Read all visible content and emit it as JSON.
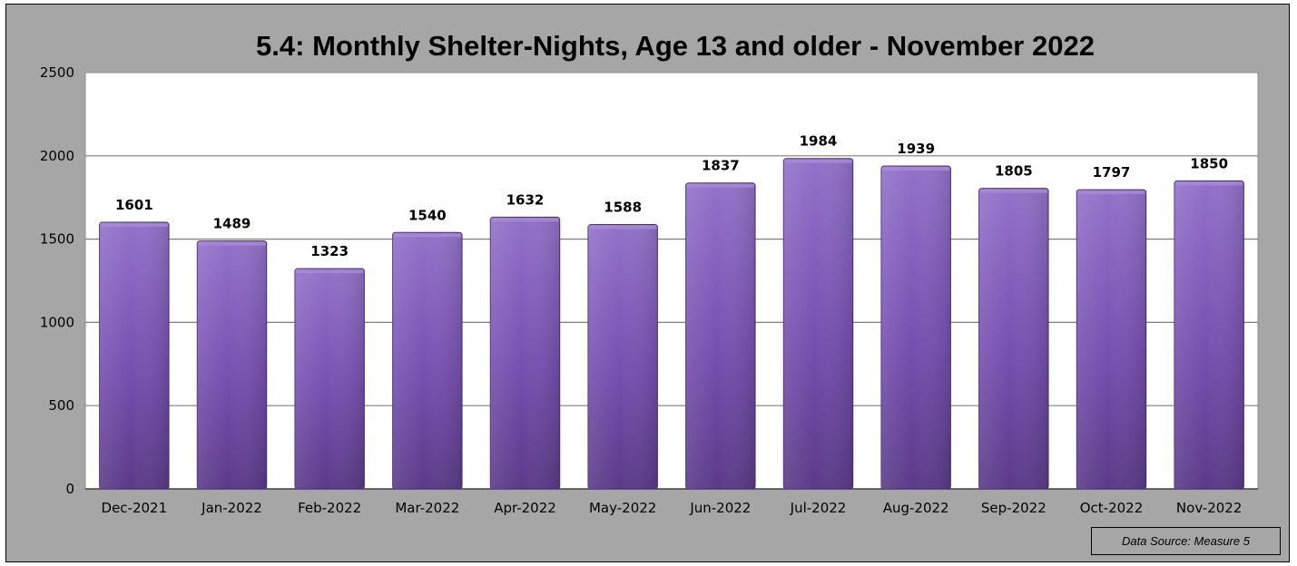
{
  "chart_data": {
    "type": "bar",
    "title": "5.4: Monthly Shelter-Nights, Age 13 and older - November 2022",
    "xlabel": "",
    "ylabel": "",
    "categories": [
      "Dec-2021",
      "Jan-2022",
      "Feb-2022",
      "Mar-2022",
      "Apr-2022",
      "May-2022",
      "Jun-2022",
      "Jul-2022",
      "Aug-2022",
      "Sep-2022",
      "Oct-2022",
      "Nov-2022"
    ],
    "values": [
      1601,
      1489,
      1323,
      1540,
      1632,
      1588,
      1837,
      1984,
      1939,
      1805,
      1797,
      1850
    ],
    "ylim": [
      0,
      2500
    ],
    "yticks": [
      0,
      500,
      1000,
      1500,
      2000,
      2500
    ],
    "grid": true,
    "legend": "none",
    "data_labels": true,
    "colors": {
      "bar_light": "#8e6cc4",
      "bar_dark": "#5e3f8f",
      "plot_background": "#ffffff",
      "chart_background": "#a6a6a6",
      "gridline": "#7f7f7f"
    }
  },
  "footer": {
    "source": "Data Source: Measure 5"
  }
}
